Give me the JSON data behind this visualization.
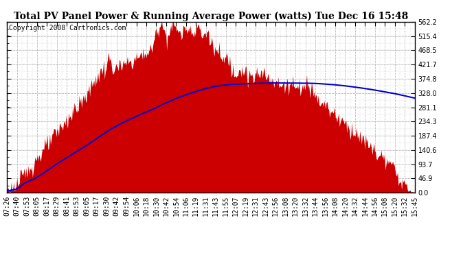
{
  "title": "Total PV Panel Power & Running Average Power (watts) Tue Dec 16 15:48",
  "copyright": "Copyright 2008 Cartronics.com",
  "y_max": 562.2,
  "y_min": 0.0,
  "y_ticks": [
    0.0,
    46.9,
    93.7,
    140.6,
    187.4,
    234.3,
    281.1,
    328.0,
    374.8,
    421.7,
    468.5,
    515.4,
    562.2
  ],
  "x_labels": [
    "07:26",
    "07:40",
    "07:53",
    "08:05",
    "08:17",
    "08:29",
    "08:41",
    "08:53",
    "09:05",
    "09:17",
    "09:30",
    "09:42",
    "09:54",
    "10:06",
    "10:18",
    "10:30",
    "10:42",
    "10:54",
    "11:06",
    "11:19",
    "11:31",
    "11:43",
    "11:55",
    "12:07",
    "12:19",
    "12:31",
    "12:43",
    "12:56",
    "13:08",
    "13:20",
    "13:32",
    "13:44",
    "13:56",
    "14:08",
    "14:20",
    "14:32",
    "14:44",
    "14:56",
    "15:08",
    "15:20",
    "15:32",
    "15:45"
  ],
  "pv_color": "#cc0000",
  "avg_color": "#0000cc",
  "bg_color": "#ffffff",
  "plot_bg_color": "#ffffff",
  "grid_color": "#bbbbbb",
  "title_fontsize": 10,
  "copyright_fontsize": 7,
  "tick_fontsize": 7
}
